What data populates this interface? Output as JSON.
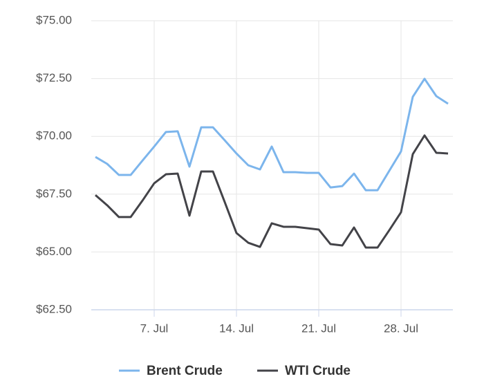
{
  "chart_data": {
    "type": "line",
    "categories": [
      null,
      null,
      null,
      null,
      null,
      "7. Jul",
      null,
      null,
      null,
      null,
      null,
      null,
      "14. Jul",
      null,
      null,
      null,
      null,
      null,
      null,
      "21. Jul",
      null,
      null,
      null,
      null,
      null,
      null,
      "28. Jul",
      null,
      null,
      null,
      null
    ],
    "series": [
      {
        "name": "Brent Crude",
        "color": "#7cb5ec",
        "values": [
          69.11,
          68.81,
          68.33,
          68.33,
          68.95,
          69.56,
          70.19,
          70.22,
          68.69,
          70.39,
          70.39,
          69.83,
          69.26,
          68.75,
          68.57,
          69.56,
          68.45,
          68.45,
          68.42,
          68.42,
          67.79,
          67.85,
          68.39,
          67.67,
          67.67,
          68.51,
          69.35,
          71.71,
          72.49,
          71.74,
          71.41
        ]
      },
      {
        "name": "WTI Crude",
        "color": "#434348",
        "values": [
          67.46,
          67.02,
          66.51,
          66.51,
          67.22,
          67.97,
          68.36,
          68.39,
          66.57,
          68.48,
          68.48,
          67.16,
          65.82,
          65.4,
          65.22,
          66.24,
          66.09,
          66.09,
          66.03,
          65.97,
          65.34,
          65.28,
          66.06,
          65.19,
          65.19,
          65.94,
          66.72,
          69.23,
          70.04,
          69.29,
          69.26
        ]
      }
    ],
    "ylim": [
      62.5,
      75
    ],
    "yticks": [
      {
        "value": 62.5,
        "label": "$62.50"
      },
      {
        "value": 65,
        "label": "$65.00"
      },
      {
        "value": 67.5,
        "label": "$67.50"
      },
      {
        "value": 70,
        "label": "$70.00"
      },
      {
        "value": 72.5,
        "label": "$72.50"
      },
      {
        "value": 75,
        "label": "$75.00"
      }
    ],
    "grid": true,
    "legend": "bottom"
  }
}
